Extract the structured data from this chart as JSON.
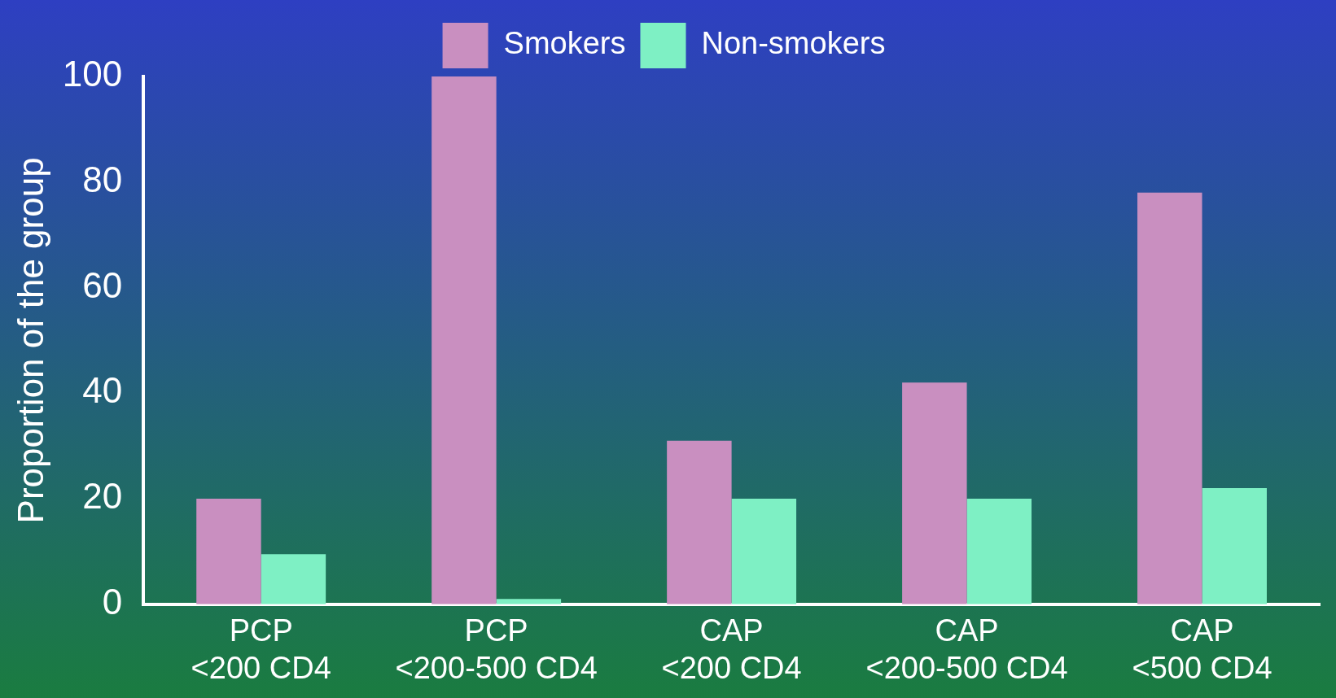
{
  "chart_data": {
    "type": "bar",
    "ylabel": "Proportion of the group",
    "categories": [
      "PCP\n<200 CD4",
      "PCP\n<200-500 CD4",
      "CAP\n<200 CD4",
      "CAP\n<200-500 CD4",
      "CAP\n<500 CD4"
    ],
    "series": [
      {
        "name": "Smokers",
        "color": "#c98fc0",
        "values": [
          20,
          100,
          31,
          42,
          78
        ]
      },
      {
        "name": "Non-smokers",
        "color": "#7ef0c4",
        "values": [
          9.5,
          1,
          20,
          20,
          22
        ]
      }
    ],
    "ylim": [
      0,
      100
    ],
    "yticks": [
      0,
      20,
      40,
      60,
      80,
      100
    ],
    "grid": false,
    "legend": "top"
  }
}
